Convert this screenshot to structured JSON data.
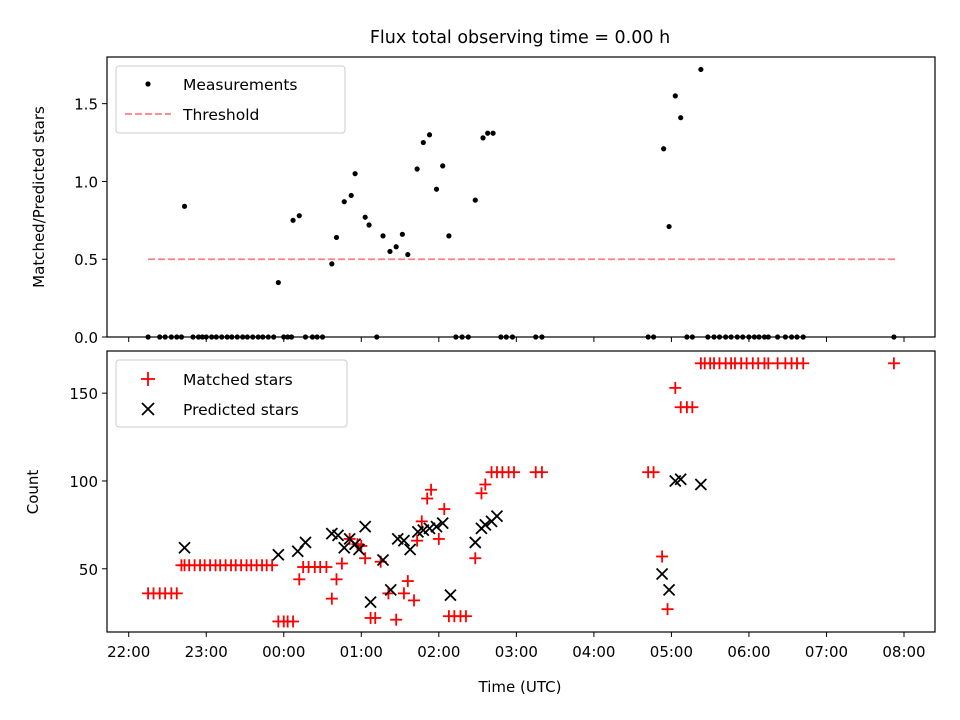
{
  "chart_data": [
    {
      "type": "scatter",
      "title": "Flux total observing time = 0.00 h",
      "xlabel": "",
      "ylabel": "Matched/Predicted stars",
      "xlim": [
        21.72,
        32.4
      ],
      "ylim": [
        0,
        1.8
      ],
      "yticks": [
        0,
        0.5,
        1.0,
        1.5
      ],
      "ytick_labels": [
        "0.0",
        "0.5",
        "1.0",
        "1.5"
      ],
      "legend": {
        "placement": "upper-left",
        "entries": [
          {
            "label": "Measurements",
            "kind": "dot",
            "color": "#000000"
          },
          {
            "label": "Threshold",
            "kind": "dashed-line",
            "color": "#ff7f7f"
          }
        ]
      },
      "threshold": {
        "value": 0.5,
        "x_from": 22.25,
        "x_to": 31.9,
        "color": "#ff7f7f"
      },
      "series": [
        {
          "name": "Measurements",
          "color": "#000000",
          "x": [
            22.25,
            22.4,
            22.47,
            22.55,
            22.62,
            22.68,
            22.72,
            22.83,
            22.9,
            22.95,
            23.0,
            23.07,
            23.13,
            23.2,
            23.27,
            23.33,
            23.4,
            23.47,
            23.53,
            23.6,
            23.67,
            23.73,
            23.8,
            23.87,
            23.93,
            24.0,
            24.05,
            24.1,
            24.12,
            24.2,
            24.28,
            24.37,
            24.43,
            24.5,
            24.62,
            24.68,
            24.78,
            24.87,
            24.92,
            25.05,
            25.1,
            25.2,
            25.28,
            25.37,
            25.45,
            25.53,
            25.6,
            25.72,
            25.8,
            25.88,
            25.97,
            26.05,
            26.13,
            26.22,
            26.3,
            26.38,
            26.47,
            26.57,
            26.63,
            26.7,
            26.8,
            26.87,
            26.95,
            27.25,
            27.33,
            28.7,
            28.77,
            28.9,
            28.97,
            29.05,
            29.12,
            29.2,
            29.27,
            29.38,
            29.47,
            29.55,
            29.62,
            29.7,
            29.77,
            29.85,
            29.92,
            30.0,
            30.07,
            30.13,
            30.2,
            30.25,
            30.37,
            30.47,
            30.55,
            30.62,
            30.7,
            31.87
          ],
          "y": [
            0,
            0,
            0,
            0,
            0,
            0,
            0.84,
            0,
            0,
            0,
            0,
            0,
            0,
            0,
            0,
            0,
            0,
            0,
            0,
            0,
            0,
            0,
            0,
            0,
            0.35,
            0,
            0,
            0,
            0.75,
            0.78,
            0,
            0,
            0,
            0,
            0.47,
            0.64,
            0.87,
            0.91,
            1.05,
            0.77,
            0.72,
            0,
            0.65,
            0.55,
            0.58,
            0.66,
            0.53,
            1.08,
            1.25,
            1.3,
            0.95,
            1.1,
            0.65,
            0,
            0,
            0,
            0.88,
            1.28,
            1.31,
            1.31,
            0,
            0,
            0,
            0,
            0,
            0,
            0,
            1.21,
            0.71,
            1.55,
            1.41,
            0,
            0,
            1.72,
            0,
            0,
            0,
            0,
            0,
            0,
            0,
            0,
            0,
            0,
            0,
            0,
            0,
            0,
            0,
            0,
            0,
            0
          ]
        }
      ]
    },
    {
      "type": "scatter",
      "title": "",
      "xlabel": "Time (UTC)",
      "ylabel": "Count",
      "xlim": [
        21.72,
        32.4
      ],
      "ylim": [
        14,
        174
      ],
      "yticks": [
        50,
        100,
        150
      ],
      "ytick_labels": [
        "50",
        "100",
        "150"
      ],
      "xticks": [
        22,
        23,
        24,
        25,
        26,
        27,
        28,
        29,
        30,
        31,
        32
      ],
      "xtick_labels": [
        "22:00",
        "23:00",
        "00:00",
        "01:00",
        "02:00",
        "03:00",
        "04:00",
        "05:00",
        "06:00",
        "07:00",
        "08:00"
      ],
      "legend": {
        "placement": "upper-left",
        "entries": [
          {
            "label": "Matched stars",
            "kind": "plus",
            "color": "#ff0000"
          },
          {
            "label": "Predicted stars",
            "kind": "cross",
            "color": "#000000"
          }
        ]
      },
      "series": [
        {
          "name": "Matched stars",
          "color": "#ff0000",
          "marker": "plus",
          "x": [
            22.25,
            22.32,
            22.4,
            22.47,
            22.55,
            22.62,
            22.68,
            22.72,
            22.78,
            22.85,
            22.92,
            22.98,
            23.05,
            23.12,
            23.18,
            23.25,
            23.32,
            23.38,
            23.45,
            23.52,
            23.58,
            23.65,
            23.72,
            23.78,
            23.85,
            23.93,
            24.0,
            24.05,
            24.12,
            24.2,
            24.25,
            24.32,
            24.4,
            24.47,
            24.55,
            24.62,
            24.68,
            24.75,
            24.85,
            24.95,
            25.0,
            25.05,
            25.12,
            25.18,
            25.25,
            25.35,
            25.45,
            25.55,
            25.6,
            25.68,
            25.72,
            25.78,
            25.85,
            25.9,
            26.0,
            26.07,
            26.13,
            26.2,
            26.28,
            26.35,
            26.47,
            26.55,
            26.6,
            26.68,
            26.75,
            26.82,
            26.9,
            26.97,
            27.25,
            27.33,
            28.7,
            28.77,
            28.88,
            28.95,
            29.05,
            29.12,
            29.2,
            29.27,
            29.38,
            29.43,
            29.5,
            29.55,
            29.62,
            29.7,
            29.77,
            29.82,
            29.9,
            29.97,
            30.05,
            30.12,
            30.2,
            30.25,
            30.37,
            30.47,
            30.55,
            30.62,
            30.7,
            31.87
          ],
          "y": [
            36,
            36,
            36,
            36,
            36,
            36,
            52,
            52,
            52,
            52,
            52,
            52,
            52,
            52,
            52,
            52,
            52,
            52,
            52,
            52,
            52,
            52,
            52,
            52,
            52,
            20,
            20,
            20,
            20,
            44,
            51,
            51,
            51,
            51,
            51,
            33,
            44,
            53,
            67,
            64,
            63,
            56,
            22,
            22,
            54,
            36,
            21,
            36,
            43,
            32,
            66,
            77,
            90,
            95,
            67,
            84,
            23,
            23,
            23,
            23,
            56,
            93,
            98,
            105,
            105,
            105,
            105,
            105,
            105,
            105,
            105,
            105,
            57,
            27,
            153,
            142,
            142,
            142,
            167,
            167,
            167,
            167,
            167,
            167,
            167,
            167,
            167,
            167,
            167,
            167,
            167,
            167,
            167,
            167,
            167,
            167,
            167,
            167
          ]
        },
        {
          "name": "Predicted stars",
          "color": "#000000",
          "marker": "cross",
          "x": [
            22.72,
            23.93,
            24.18,
            24.28,
            24.62,
            24.7,
            24.78,
            24.85,
            24.92,
            24.97,
            25.05,
            25.12,
            25.28,
            25.38,
            25.47,
            25.55,
            25.63,
            25.73,
            25.8,
            25.88,
            25.97,
            26.05,
            26.15,
            26.47,
            26.55,
            26.6,
            26.68,
            26.75,
            28.88,
            28.97,
            29.05,
            29.12,
            29.38
          ],
          "y": [
            62,
            58,
            60,
            65,
            70,
            69,
            62,
            67,
            64,
            61,
            74,
            31,
            55,
            38,
            67,
            66,
            61,
            71,
            72,
            73,
            74,
            76,
            35,
            65,
            73,
            75,
            77,
            80,
            47,
            38,
            100,
            101,
            98
          ]
        }
      ]
    }
  ]
}
